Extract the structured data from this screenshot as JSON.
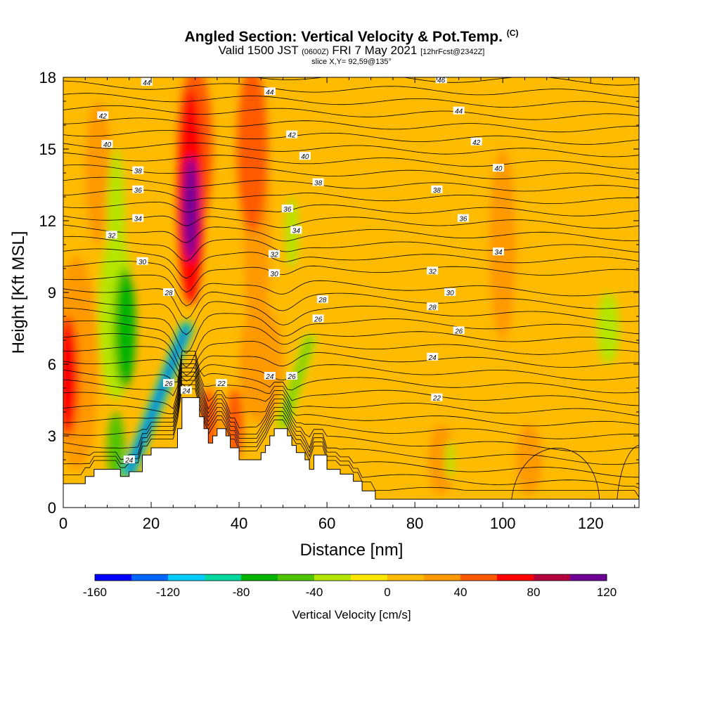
{
  "header": {
    "title": "Angled Section: Vertical Velocity & Pot.Temp.",
    "copyright": "(C)",
    "valid_prefix": "Valid 1500 JST",
    "valid_zulu": "(0600Z)",
    "valid_date": "FRI 7 May 2021",
    "forecast": "[12hrFcst@2342Z]",
    "slice": "slice X,Y= 92,59@135°"
  },
  "chart_data": {
    "type": "heatmap",
    "title": "Angled Section: Vertical Velocity & Pot.Temp.",
    "xlabel": "Distance [nm]",
    "ylabel": "Height [Kft MSL]",
    "xlim": [
      0,
      131
    ],
    "ylim": [
      0,
      18
    ],
    "x_ticks": [
      0,
      20,
      40,
      60,
      80,
      100,
      120
    ],
    "y_ticks": [
      0,
      3,
      6,
      9,
      12,
      15,
      18
    ],
    "colorbar": {
      "title": "Vertical Velocity [cm/s]",
      "range": [
        -160,
        120
      ],
      "step": 20,
      "tick_labels": [
        "-160",
        "-120",
        "-80",
        "-40",
        "0",
        "40",
        "80",
        "120"
      ],
      "tick_values": [
        -160,
        -120,
        -80,
        -40,
        0,
        40,
        80,
        120
      ],
      "colors": [
        "#0000ff",
        "#0066ff",
        "#00ccff",
        "#00d9a0",
        "#00b400",
        "#4fc400",
        "#b4e600",
        "#ffe600",
        "#ffbb00",
        "#ff9900",
        "#ff5a00",
        "#ff0000",
        "#b4003c",
        "#6e0096"
      ]
    },
    "background_value": 0,
    "fields": [
      {
        "x": 1,
        "y": 5.5,
        "rx": 2.5,
        "ry": 2.5,
        "v": 70
      },
      {
        "x": 3,
        "y": 6,
        "rx": 5,
        "ry": 4.5,
        "v": 30
      },
      {
        "x": 14,
        "y": 7.5,
        "rx": 2.5,
        "ry": 2.5,
        "v": -70
      },
      {
        "x": 12,
        "y": 8,
        "rx": 4,
        "ry": 3.5,
        "v": -35
      },
      {
        "x": 12,
        "y": 2.5,
        "rx": 2,
        "ry": 1.5,
        "v": -60
      },
      {
        "x": 12,
        "y": 12,
        "rx": 2,
        "ry": 3,
        "v": -30
      },
      {
        "x": 29,
        "y": 12.5,
        "rx": 1.8,
        "ry": 2.2,
        "v": 110
      },
      {
        "x": 29,
        "y": 13,
        "rx": 3,
        "ry": 4.5,
        "v": 70
      },
      {
        "x": 30,
        "y": 15,
        "rx": 4,
        "ry": 3.5,
        "v": 45
      },
      {
        "x": 43,
        "y": 15,
        "rx": 3.5,
        "ry": 3.5,
        "v": 45
      },
      {
        "x": 44,
        "y": 12,
        "rx": 3,
        "ry": 6,
        "v": 30
      },
      {
        "x": 33,
        "y": 3.5,
        "rx": 2,
        "ry": 1.5,
        "v": 40
      },
      {
        "x": 39,
        "y": 3.5,
        "rx": 2,
        "ry": 1.5,
        "v": 40
      },
      {
        "x": 52,
        "y": 11.5,
        "rx": 1.5,
        "ry": 1.5,
        "v": -30
      },
      {
        "x": 8,
        "y": 14,
        "rx": 3,
        "ry": 3,
        "v": 20
      },
      {
        "x": 100,
        "y": 11,
        "rx": 3,
        "ry": 4,
        "v": 20
      },
      {
        "x": 86,
        "y": 2,
        "rx": 3,
        "ry": 1.5,
        "v": 20
      },
      {
        "x": 106,
        "y": 2,
        "rx": 3,
        "ry": 1.5,
        "v": 20
      },
      {
        "x": 124,
        "y": 7.5,
        "rx": 2.5,
        "ry": 1.5,
        "v": -30
      },
      {
        "x": 88,
        "y": 2,
        "rx": 1,
        "ry": 0.8,
        "v": -30
      },
      {
        "x": 45,
        "y": 6,
        "rx": 5,
        "ry": 2.5,
        "v": 20
      },
      {
        "x": 115,
        "y": 2,
        "rx": 5,
        "ry": 1.5,
        "v": 15
      },
      {
        "x": 66,
        "y": 2.5,
        "rx": 3,
        "ry": 1.5,
        "v": 15
      }
    ],
    "updraft_bands": [
      {
        "points": [
          [
            15,
            1.5
          ],
          [
            28,
            7.5
          ]
        ],
        "v": -150,
        "halo_v": -90,
        "width": 1.2
      },
      {
        "points": [
          [
            50,
            3.5
          ],
          [
            56,
            7
          ]
        ],
        "v": -60,
        "halo_v": -40,
        "width": 1.2
      }
    ],
    "theta_levels": [
      22,
      24,
      26,
      28,
      30,
      32,
      34,
      36,
      38,
      40,
      42,
      44,
      46
    ],
    "contour_labels": [
      {
        "x": 19,
        "y": 17.8,
        "t": "44"
      },
      {
        "x": 47,
        "y": 17.4,
        "t": "44"
      },
      {
        "x": 86,
        "y": 17.9,
        "t": "46"
      },
      {
        "x": 9,
        "y": 16.4,
        "t": "42"
      },
      {
        "x": 90,
        "y": 16.6,
        "t": "44"
      },
      {
        "x": 52,
        "y": 15.6,
        "t": "42"
      },
      {
        "x": 10,
        "y": 15.2,
        "t": "40"
      },
      {
        "x": 94,
        "y": 15.3,
        "t": "42"
      },
      {
        "x": 55,
        "y": 14.7,
        "t": "40"
      },
      {
        "x": 17,
        "y": 14.1,
        "t": "38"
      },
      {
        "x": 99,
        "y": 14.2,
        "t": "40"
      },
      {
        "x": 58,
        "y": 13.6,
        "t": "38"
      },
      {
        "x": 17,
        "y": 13.3,
        "t": "36"
      },
      {
        "x": 85,
        "y": 13.3,
        "t": "38"
      },
      {
        "x": 51,
        "y": 12.5,
        "t": "36"
      },
      {
        "x": 17,
        "y": 12.1,
        "t": "34"
      },
      {
        "x": 91,
        "y": 12.1,
        "t": "36"
      },
      {
        "x": 53,
        "y": 11.6,
        "t": "34"
      },
      {
        "x": 11,
        "y": 11.4,
        "t": "32"
      },
      {
        "x": 99,
        "y": 10.7,
        "t": "34"
      },
      {
        "x": 48,
        "y": 10.6,
        "t": "32"
      },
      {
        "x": 18,
        "y": 10.3,
        "t": "30"
      },
      {
        "x": 84,
        "y": 9.9,
        "t": "32"
      },
      {
        "x": 48,
        "y": 9.8,
        "t": "30"
      },
      {
        "x": 24,
        "y": 9,
        "t": "28"
      },
      {
        "x": 88,
        "y": 9,
        "t": "30"
      },
      {
        "x": 59,
        "y": 8.7,
        "t": "28"
      },
      {
        "x": 84,
        "y": 8.4,
        "t": "28"
      },
      {
        "x": 58,
        "y": 7.9,
        "t": "26"
      },
      {
        "x": 90,
        "y": 7.4,
        "t": "26"
      },
      {
        "x": 84,
        "y": 6.3,
        "t": "24"
      },
      {
        "x": 24,
        "y": 5.2,
        "t": "26"
      },
      {
        "x": 28,
        "y": 4.9,
        "t": "24"
      },
      {
        "x": 36,
        "y": 5.2,
        "t": "22"
      },
      {
        "x": 47,
        "y": 5.5,
        "t": "24"
      },
      {
        "x": 52,
        "y": 5.5,
        "t": "26"
      },
      {
        "x": 85,
        "y": 4.6,
        "t": "22"
      },
      {
        "x": 15,
        "y": 2,
        "t": "24"
      }
    ],
    "terrain": [
      [
        0,
        1.0
      ],
      [
        5,
        1.0
      ],
      [
        5,
        1.3
      ],
      [
        7,
        1.3
      ],
      [
        7,
        1.6
      ],
      [
        13,
        1.6
      ],
      [
        13,
        1.3
      ],
      [
        15,
        1.3
      ],
      [
        15,
        1.5
      ],
      [
        18,
        1.5
      ],
      [
        18,
        2.2
      ],
      [
        20,
        2.2
      ],
      [
        20,
        2.5
      ],
      [
        26,
        2.5
      ],
      [
        26,
        3.3
      ],
      [
        27,
        3.3
      ],
      [
        27,
        4.6
      ],
      [
        31,
        4.6
      ],
      [
        31,
        3.8
      ],
      [
        32,
        3.8
      ],
      [
        32,
        3.3
      ],
      [
        33,
        3.3
      ],
      [
        33,
        2.7
      ],
      [
        34,
        2.7
      ],
      [
        34,
        3.0
      ],
      [
        35,
        3.0
      ],
      [
        35,
        3.3
      ],
      [
        37,
        3.3
      ],
      [
        37,
        3.0
      ],
      [
        38,
        3.0
      ],
      [
        38,
        2.5
      ],
      [
        40,
        2.5
      ],
      [
        40,
        2.0
      ],
      [
        45,
        2.0
      ],
      [
        45,
        2.3
      ],
      [
        46,
        2.3
      ],
      [
        46,
        2.6
      ],
      [
        47,
        2.6
      ],
      [
        47,
        3.0
      ],
      [
        48,
        3.0
      ],
      [
        48,
        3.3
      ],
      [
        51,
        3.3
      ],
      [
        51,
        3.0
      ],
      [
        52,
        3.0
      ],
      [
        52,
        2.6
      ],
      [
        53,
        2.6
      ],
      [
        53,
        2.3
      ],
      [
        55,
        2.3
      ],
      [
        55,
        2.0
      ],
      [
        56,
        2.0
      ],
      [
        56,
        1.6
      ],
      [
        57,
        1.6
      ],
      [
        57,
        2.2
      ],
      [
        60,
        2.2
      ],
      [
        60,
        1.6
      ],
      [
        63,
        1.6
      ],
      [
        63,
        1.4
      ],
      [
        66,
        1.4
      ],
      [
        66,
        1.1
      ],
      [
        68,
        1.1
      ],
      [
        68,
        0.7
      ],
      [
        71,
        0.7
      ],
      [
        71,
        0.35
      ],
      [
        131,
        0.35
      ],
      [
        131,
        0
      ]
    ]
  }
}
